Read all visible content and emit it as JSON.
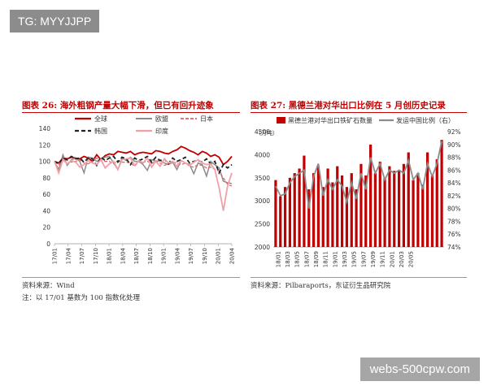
{
  "watermark_tl": "TG: MYYJJPP",
  "watermark_br": "webs-500cpw.com",
  "left": {
    "title": "图表 26: 海外粗钢产量大幅下滑，但已有回升迹象",
    "source": "资料来源：Wind",
    "note": "注：以 17/01 基数为 100 指数化处理"
  },
  "right": {
    "title": "图表 27: 黑德兰港对华出口比例在 5 月创历史记录",
    "source": "资料来源：Pilbaraports，东证衍生品研究院"
  },
  "colors": {
    "red": "#c00000",
    "gray": "#8c8c8c",
    "black": "#222222",
    "pink": "#f2a0a8",
    "darkred": "#c00000"
  },
  "chart_data": [
    {
      "type": "line",
      "ylim": [
        0,
        140
      ],
      "yticks": [
        "0",
        "20",
        "40",
        "60",
        "80",
        "100",
        "120",
        "140"
      ],
      "xticks": [
        "17/01",
        "17/04",
        "17/07",
        "17/10",
        "18/01",
        "18/04",
        "18/07",
        "18/10",
        "19/01",
        "19/04",
        "19/07",
        "19/10",
        "20/01",
        "20/04"
      ],
      "series": [
        {
          "name": "全球",
          "values": [
            100,
            98,
            104,
            103,
            105,
            104,
            103,
            106,
            104,
            100,
            108,
            102,
            107,
            109,
            108,
            112,
            111,
            110,
            112,
            108,
            110,
            111,
            110,
            109,
            113,
            112,
            110,
            109,
            112,
            114,
            118,
            116,
            113,
            111,
            108,
            112,
            110,
            106,
            108,
            105,
            96,
            100,
            106
          ]
        },
        {
          "name": "欧盟",
          "values": [
            100,
            90,
            108,
            95,
            102,
            104,
            100,
            86,
            105,
            104,
            100,
            103,
            105,
            106,
            98,
            90,
            104,
            101,
            105,
            100,
            100,
            96,
            89,
            102,
            100,
            101,
            98,
            96,
            99,
            90,
            101,
            98,
            96,
            85,
            98,
            96,
            82,
            100,
            96,
            92,
            76,
            74,
            73
          ]
        },
        {
          "name": "日本",
          "values": [
            100,
            96,
            103,
            101,
            99,
            100,
            102,
            98,
            97,
            100,
            104,
            101,
            100,
            100,
            97,
            101,
            99,
            99,
            98,
            94,
            100,
            99,
            100,
            97,
            101,
            98,
            95,
            97,
            99,
            98,
            96,
            98,
            94,
            93,
            96,
            95,
            92,
            93,
            90,
            88,
            80,
            72,
            70
          ]
        },
        {
          "name": "韩国",
          "values": [
            100,
            97,
            104,
            102,
            106,
            103,
            104,
            99,
            104,
            103,
            95,
            105,
            101,
            104,
            106,
            99,
            105,
            103,
            96,
            104,
            101,
            103,
            106,
            99,
            105,
            101,
            103,
            97,
            104,
            100,
            102,
            105,
            98,
            100,
            101,
            99,
            103,
            97,
            100,
            86,
            96,
            92,
            96
          ]
        },
        {
          "name": "印度",
          "values": [
            100,
            86,
            102,
            97,
            101,
            99,
            93,
            96,
            101,
            98,
            96,
            102,
            92,
            97,
            100,
            90,
            102,
            103,
            104,
            95,
            101,
            98,
            104,
            93,
            100,
            94,
            103,
            98,
            100,
            94,
            101,
            98,
            95,
            99,
            102,
            98,
            96,
            97,
            90,
            68,
            40,
            70,
            86
          ]
        }
      ]
    },
    {
      "type": "bar",
      "ylim": [
        2000,
        4500
      ],
      "y2lim": [
        0.74,
        0.92
      ],
      "yticks": [
        "2000",
        "2500",
        "3000",
        "3500",
        "4000",
        "4500"
      ],
      "y2ticks": [
        "74%",
        "76%",
        "78%",
        "80%",
        "82%",
        "84%",
        "86%",
        "88%",
        "90%",
        "92%"
      ],
      "yunit": "（万吨）",
      "xticks": [
        "18/01",
        "18/03",
        "18/05",
        "18/07",
        "18/09",
        "18/11",
        "19/01",
        "19/03",
        "19/05",
        "19/07",
        "19/09",
        "19/11",
        "20/01",
        "20/03",
        "20/05"
      ],
      "series": [
        {
          "name": "黑德兰港对华出口铁矿石数量",
          "values": [
            3450,
            3100,
            3300,
            3500,
            3600,
            3700,
            3980,
            3250,
            3600,
            3750,
            3300,
            3700,
            3400,
            3750,
            3550,
            3300,
            3600,
            3250,
            3800,
            3550,
            4220,
            3600,
            3850,
            3500,
            3750,
            3650,
            3650,
            3800,
            4050,
            3450,
            3600,
            3350,
            4050,
            3550,
            3900,
            4320
          ]
        },
        {
          "name": "发运中国比例（右）",
          "values": [
            0.835,
            0.82,
            0.823,
            0.84,
            0.85,
            0.855,
            0.86,
            0.8,
            0.85,
            0.87,
            0.82,
            0.845,
            0.83,
            0.845,
            0.835,
            0.81,
            0.84,
            0.815,
            0.855,
            0.83,
            0.88,
            0.855,
            0.87,
            0.845,
            0.86,
            0.855,
            0.86,
            0.855,
            0.875,
            0.845,
            0.855,
            0.83,
            0.87,
            0.85,
            0.87,
            0.905
          ]
        }
      ]
    }
  ]
}
